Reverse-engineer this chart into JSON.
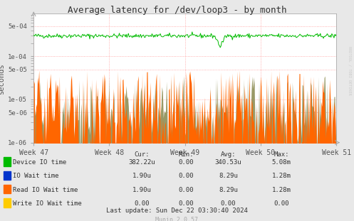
{
  "title": "Average latency for /dev/loop3 - by month",
  "ylabel": "seconds",
  "xlabel_ticks": [
    "Week 47",
    "Week 48",
    "Week 49",
    "Week 50",
    "Week 51"
  ],
  "ylim_log": [
    1e-06,
    0.001
  ],
  "bg_color": "#e8e8e8",
  "plot_bg_color": "#ffffff",
  "grid_color": "#ff9999",
  "green_line_color": "#00bb00",
  "orange_bar_color": "#ff6600",
  "gray_bar_color": "#999966",
  "blue_legend_color": "#0033cc",
  "yellow_legend_color": "#ffcc00",
  "green_avg": 0.0003,
  "green_noise_scale": 0.06,
  "n_points": 400,
  "orange_base": 4e-06,
  "sidebar_text": "RRDTOOL / TOBI OETIKER",
  "yticks": [
    1e-06,
    5e-06,
    1e-05,
    5e-05,
    0.0001,
    0.0005
  ],
  "ytick_labels": [
    "1e-06",
    "5e-06",
    "1e-05",
    "5e-05",
    "1e-04",
    "5e-04"
  ],
  "legend_entries": [
    {
      "label": "Device IO time",
      "color": "#00bb00",
      "cur": "382.22u",
      "min": "0.00",
      "avg": "340.53u",
      "max": "5.08m"
    },
    {
      "label": "IO Wait time",
      "color": "#0033cc",
      "cur": "1.90u",
      "min": "0.00",
      "avg": "8.29u",
      "max": "1.28m"
    },
    {
      "label": "Read IO Wait time",
      "color": "#ff6600",
      "cur": "1.90u",
      "min": "0.00",
      "avg": "8.29u",
      "max": "1.28m"
    },
    {
      "label": "Write IO Wait time",
      "color": "#ffcc00",
      "cur": "0.00",
      "min": "0.00",
      "avg": "0.00",
      "max": "0.00"
    }
  ],
  "footer_text": "Last update: Sun Dec 22 03:30:40 2024",
  "munin_text": "Munin 2.0.57"
}
